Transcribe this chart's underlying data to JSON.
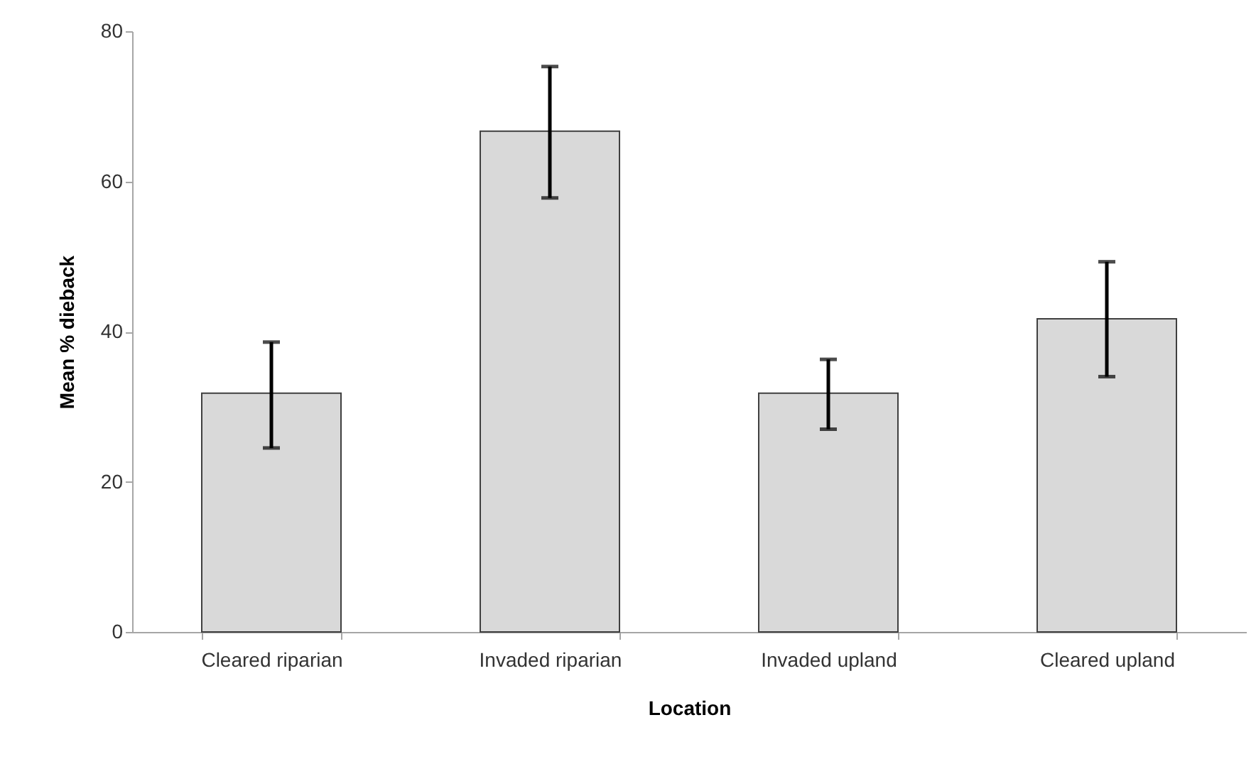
{
  "chart_data": {
    "type": "bar",
    "xlabel": "Location",
    "ylabel": "Mean % dieback",
    "categories": [
      "Cleared riparian",
      "Invaded riparian",
      "Invaded upland",
      "Cleared upland"
    ],
    "values": [
      31.8,
      66.7,
      31.8,
      41.7
    ],
    "errors": [
      [
        24.5,
        38.6
      ],
      [
        57.8,
        75.3
      ],
      [
        27.0,
        36.3
      ],
      [
        34.0,
        49.3
      ]
    ],
    "color": "#d9d9d9",
    "ylim": [
      0,
      80
    ],
    "yticks": [
      0,
      20,
      40,
      60,
      80
    ],
    "grid": false
  }
}
